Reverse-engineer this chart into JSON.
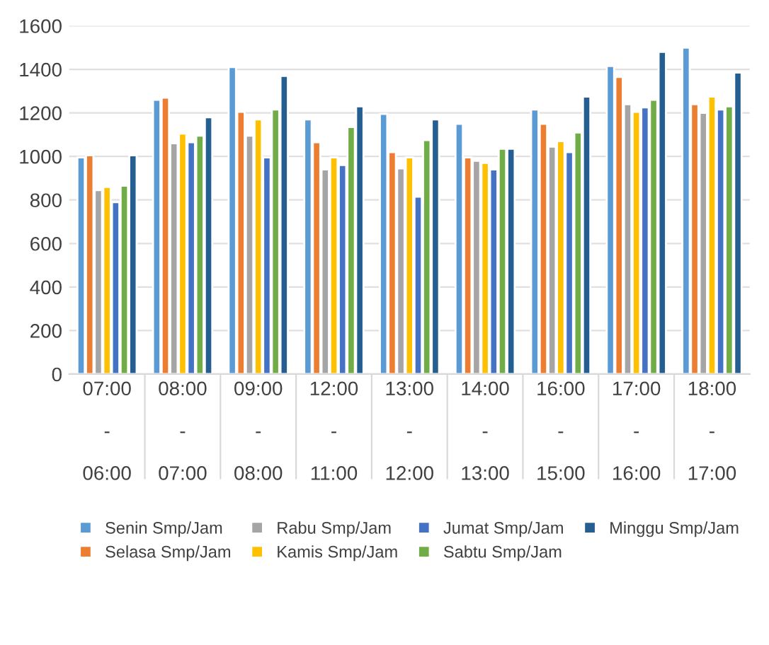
{
  "chart_data": {
    "type": "bar",
    "categories": [
      "07:00\n\n-\n\n06:00",
      "08:00\n\n-\n\n07:00",
      "09:00\n\n-\n\n08:00",
      "12:00\n\n-\n\n11:00",
      "13:00\n\n-\n\n12:00",
      "14:00\n\n-\n\n13:00",
      "16:00\n\n-\n\n15:00",
      "17:00\n\n-\n\n16:00",
      "18:00\n\n-\n\n17:00"
    ],
    "series": [
      {
        "name": "Senin Smp/Jam",
        "color": "#5b9bd5",
        "values": [
          995,
          1260,
          1410,
          1170,
          1195,
          1150,
          1215,
          1415,
          1500
        ]
      },
      {
        "name": "Selasa Smp/Jam",
        "color": "#ed7d31",
        "values": [
          1005,
          1270,
          1205,
          1065,
          1020,
          995,
          1150,
          1365,
          1240
        ]
      },
      {
        "name": "Rabu Smp/Jam",
        "color": "#a5a5a5",
        "values": [
          845,
          1060,
          1095,
          940,
          945,
          980,
          1045,
          1240,
          1200
        ]
      },
      {
        "name": "Kamis Smp/Jam",
        "color": "#ffc000",
        "values": [
          860,
          1105,
          1170,
          995,
          995,
          970,
          1070,
          1205,
          1275
        ]
      },
      {
        "name": "Jumat Smp/Jam",
        "color": "#4472c4",
        "values": [
          790,
          1065,
          995,
          960,
          815,
          940,
          1020,
          1225,
          1215
        ]
      },
      {
        "name": "Sabtu Smp/Jam",
        "color": "#70ad47",
        "values": [
          865,
          1095,
          1215,
          1135,
          1075,
          1035,
          1110,
          1260,
          1230
        ]
      },
      {
        "name": "Minggu Smp/Jam",
        "color": "#255e91",
        "values": [
          1005,
          1180,
          1370,
          1230,
          1170,
          1035,
          1275,
          1480,
          1385
        ]
      }
    ],
    "ylim": [
      0,
      1600
    ],
    "yticks": [
      0,
      200,
      400,
      600,
      800,
      1000,
      1200,
      1400,
      1600
    ],
    "grid": "y",
    "legend": "bottom"
  }
}
